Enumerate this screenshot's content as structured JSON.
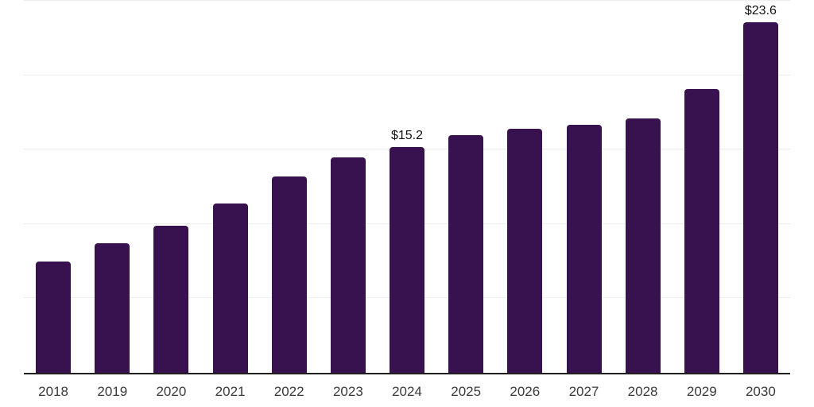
{
  "chart_data": {
    "type": "bar",
    "title": "",
    "xlabel": "",
    "ylabel": "",
    "categories": [
      "2018",
      "2019",
      "2020",
      "2021",
      "2022",
      "2023",
      "2024",
      "2025",
      "2026",
      "2027",
      "2028",
      "2029",
      "2030"
    ],
    "values": [
      7.5,
      8.7,
      9.9,
      11.4,
      13.2,
      14.5,
      15.2,
      16.0,
      16.4,
      16.7,
      17.1,
      19.1,
      23.6
    ],
    "point_labels": [
      "",
      "",
      "",
      "",
      "",
      "",
      "$15.2",
      "",
      "",
      "",
      "",
      "",
      "$23.6"
    ],
    "ylim": [
      0,
      25
    ],
    "gridline_values": [
      5,
      10,
      15,
      20,
      25
    ],
    "grid": "horizontal",
    "legend": "none",
    "y_tick_labels_visible": false
  },
  "colors": {
    "bar": "#38124e",
    "gridline": "#ededed",
    "axis": "#1f1f1f",
    "tick_label": "#3a3a3a",
    "value_label": "#111111",
    "background": "#ffffff"
  }
}
